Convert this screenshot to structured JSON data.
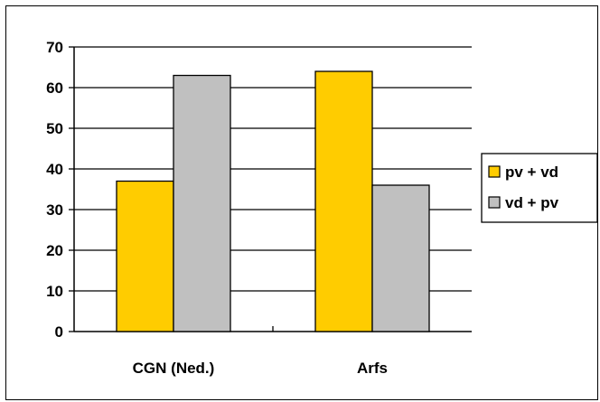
{
  "chart_data": {
    "type": "bar",
    "categories": [
      "CGN (Ned.)",
      "Arfs"
    ],
    "series": [
      {
        "name": "pv + vd",
        "values": [
          37,
          64
        ],
        "color": "#FFCC00"
      },
      {
        "name": "vd + pv",
        "values": [
          63,
          36
        ],
        "color": "#C0C0C0"
      }
    ],
    "ylim": [
      0,
      70
    ],
    "yticks": [
      0,
      10,
      20,
      30,
      40,
      50,
      60,
      70
    ],
    "grid": true,
    "legend": "right",
    "title": "",
    "xlabel": "",
    "ylabel": ""
  }
}
